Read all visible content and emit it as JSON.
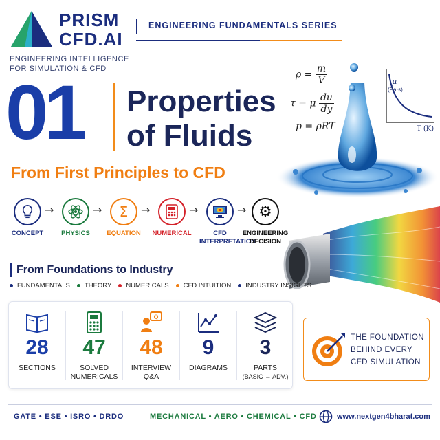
{
  "brand": {
    "name_line1": "PRISM",
    "name_line2": "CFD.AI",
    "tagline_line1": "ENGINEERING INTELLIGENCE",
    "tagline_line2": "FOR SIMULATION & CFD"
  },
  "series": "ENGINEERING FUNDAMENTALS SERIES",
  "title": {
    "number": "01",
    "line1": "Properties",
    "line2": "of Fluids",
    "subtitle": "From First Principles to CFD"
  },
  "formulas": {
    "density": "ρ = m/V",
    "shear": "τ = μ du/dy",
    "ideal_gas": "p = ρRT"
  },
  "viscosity_plot": {
    "y_label": "μ",
    "y_unit": "(Pa·s)",
    "x_label": "T (K)"
  },
  "workflow": [
    {
      "label": "CONCEPT",
      "icon": "lightbulb-icon",
      "color": "#1b2d7e"
    },
    {
      "label": "PHYSICS",
      "icon": "atom-icon",
      "color": "#1b7a3e"
    },
    {
      "label": "EQUATION",
      "icon": "sigma-icon",
      "color": "#f07e12"
    },
    {
      "label": "NUMERICAL",
      "icon": "calculator-icon",
      "color": "#d4222a"
    },
    {
      "label": "CFD INTERPRETATION",
      "icon": "monitor-icon",
      "color": "#1b2d7e"
    },
    {
      "label": "ENGINEERING DECISION",
      "icon": "gear-icon",
      "color": "#111111"
    }
  ],
  "foundations": {
    "title": "From Foundations to Industry",
    "items": [
      {
        "label": "FUNDAMENTALS",
        "color": "#1b2d7e"
      },
      {
        "label": "THEORY",
        "color": "#1b7a3e"
      },
      {
        "label": "NUMERICALS",
        "color": "#d4222a"
      },
      {
        "label": "CFD INTUITION",
        "color": "#f07e12"
      },
      {
        "label": "INDUSTRY INSIGHTS",
        "color": "#1b2d7e"
      }
    ]
  },
  "stats": [
    {
      "value": "28",
      "label1": "SECTIONS",
      "label2": "",
      "icon": "book-icon",
      "color": "#1a3ea8"
    },
    {
      "value": "47",
      "label1": "SOLVED",
      "label2": "NUMERICALS",
      "icon": "calculator-icon",
      "color": "#1b7a3e"
    },
    {
      "value": "48",
      "label1": "INTERVIEW",
      "label2": "Q&A",
      "icon": "interview-icon",
      "color": "#f07e12"
    },
    {
      "value": "9",
      "label1": "DIAGRAMS",
      "label2": "",
      "icon": "chart-icon",
      "color": "#1b2d7e"
    },
    {
      "value": "3",
      "label1": "PARTS",
      "label2": "(BASIC → ADV.)",
      "icon": "layers-icon",
      "color": "#1b2659"
    }
  ],
  "foundation_card": {
    "line1": "THE FOUNDATION",
    "line2": "BEHIND EVERY",
    "line3": "CFD SIMULATION"
  },
  "footer": {
    "exams": "GATE  •  ESE  •  ISRO  •  DRDO",
    "branches": "MECHANICAL  •  AERO  •  CHEMICAL  •  CFD",
    "website": "www.nextgen4bharat.com"
  }
}
